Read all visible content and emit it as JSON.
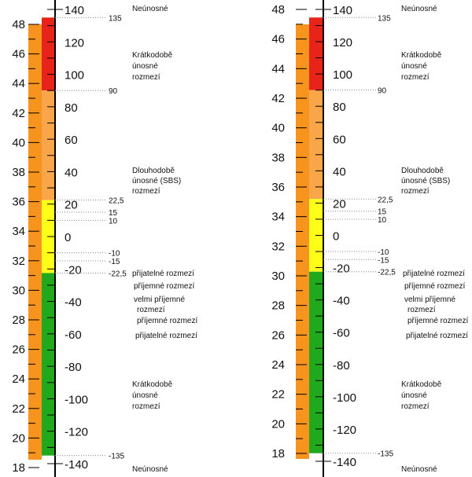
{
  "colors": {
    "orange": "#f7941d",
    "orange_light": "#f9a54a",
    "red": "#e8231a",
    "yellow": "#ffff1a",
    "green": "#22a81c",
    "axis": "#000000",
    "dotted": "#888888"
  },
  "left_scale": {
    "range": [
      18,
      48
    ],
    "ticks": [
      "18",
      "20",
      "22",
      "24",
      "26",
      "28",
      "30",
      "32",
      "34",
      "36",
      "38",
      "40",
      "42",
      "44",
      "46",
      "48"
    ]
  },
  "right_scale": {
    "range": [
      -140,
      140
    ],
    "ticks": [
      "-140",
      "-120",
      "-100",
      "-80",
      "-60",
      "-40",
      "-20",
      "0",
      "20",
      "40",
      "60",
      "80",
      "100",
      "120",
      "140"
    ]
  },
  "thresholds": [
    "135",
    "90",
    "22,5",
    "15",
    "10",
    "-10",
    "-15",
    "-22,5",
    "-135"
  ],
  "zones": {
    "red": [
      90,
      135
    ],
    "orange": [
      22.5,
      90
    ],
    "yellow": [
      -22.5,
      22.5
    ],
    "green": [
      -135,
      -22.5
    ]
  },
  "labels": {
    "neunosne_top": "Neúnosné",
    "kratkodobe_top": [
      "Krátkodobě",
      "únosné",
      "rozmezí"
    ],
    "dlouhodobe": [
      "Dlouhodobě",
      "únosné (SBS)",
      "rozmezí"
    ],
    "prijatelne_top": "přijatelné rozmezí",
    "prijemne_top": "příjemné rozmezí",
    "velmi_prijemne": [
      "velmi příjemné",
      "rozmezí"
    ],
    "prijemne_bottom": "příjemné rozmezí",
    "prijatelne_bottom": "přijatelné rozmezí",
    "kratkodobe_bottom": [
      "Krátkodobě",
      "únosné",
      "rozmezí"
    ],
    "neunosne_bottom": "Neúnosné"
  }
}
